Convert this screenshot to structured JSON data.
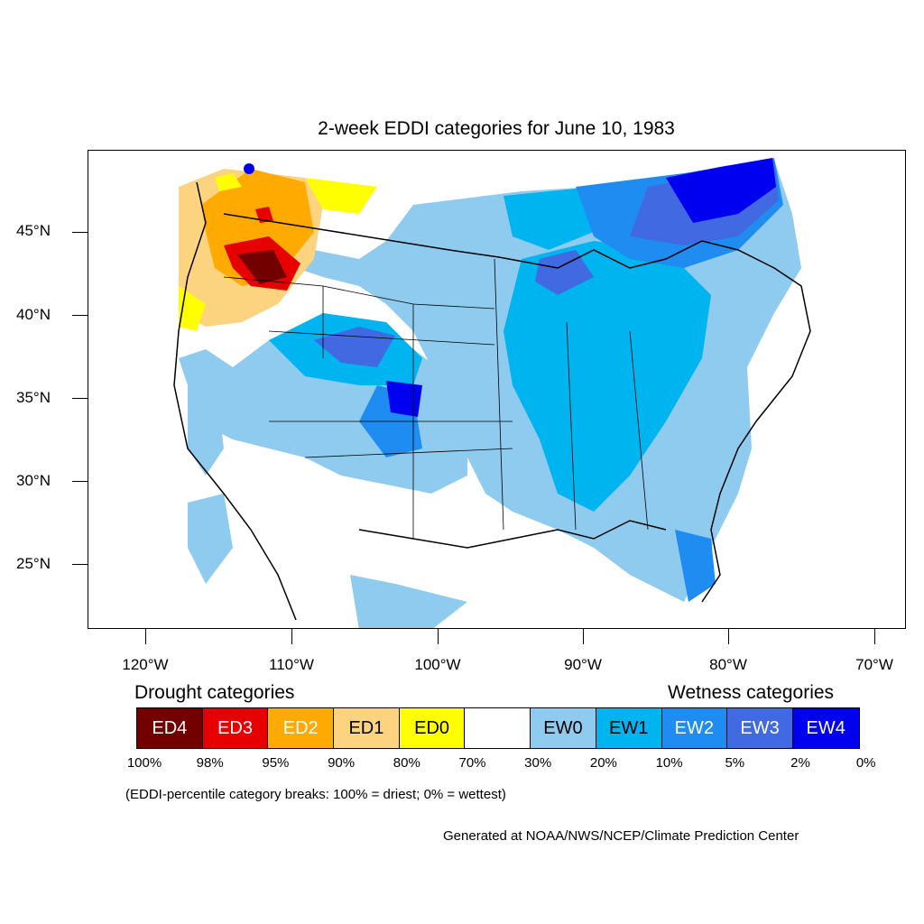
{
  "title": "2-week EDDI categories for June 10, 1983",
  "lat_labels": [
    "45°N",
    "40°N",
    "35°N",
    "30°N",
    "25°N"
  ],
  "lon_labels": [
    "120°W",
    "110°W",
    "100°W",
    "90°W",
    "80°W",
    "70°W"
  ],
  "legend": {
    "drought_heading": "Drought categories",
    "wetness_heading": "Wetness categories",
    "categories": [
      {
        "label": "ED4",
        "color": "#730000",
        "text_color": "#ffffff"
      },
      {
        "label": "ED3",
        "color": "#e60000",
        "text_color": "#ffffff"
      },
      {
        "label": "ED2",
        "color": "#ffaa00",
        "text_color": "#ffffff"
      },
      {
        "label": "ED1",
        "color": "#fcd37f",
        "text_color": "#000000"
      },
      {
        "label": "ED0",
        "color": "#ffff00",
        "text_color": "#000000"
      },
      {
        "label": "",
        "color": "#ffffff",
        "text_color": "#000000"
      },
      {
        "label": "EW0",
        "color": "#8fcbee",
        "text_color": "#000000"
      },
      {
        "label": "EW1",
        "color": "#00b4f0",
        "text_color": "#000000"
      },
      {
        "label": "EW2",
        "color": "#1e8cf0",
        "text_color": "#ffffff"
      },
      {
        "label": "EW3",
        "color": "#4169e1",
        "text_color": "#ffffff"
      },
      {
        "label": "EW4",
        "color": "#0000f0",
        "text_color": "#ffffff"
      }
    ],
    "percentiles": [
      "100%",
      "98%",
      "95%",
      "90%",
      "80%",
      "70%",
      "30%",
      "20%",
      "10%",
      "5%",
      "2%",
      "0%"
    ]
  },
  "note": "(EDDI-percentile category breaks: 100% = driest; 0% = wettest)",
  "credit": "Generated at NOAA/NWS/NCEP/Climate Prediction Center"
}
